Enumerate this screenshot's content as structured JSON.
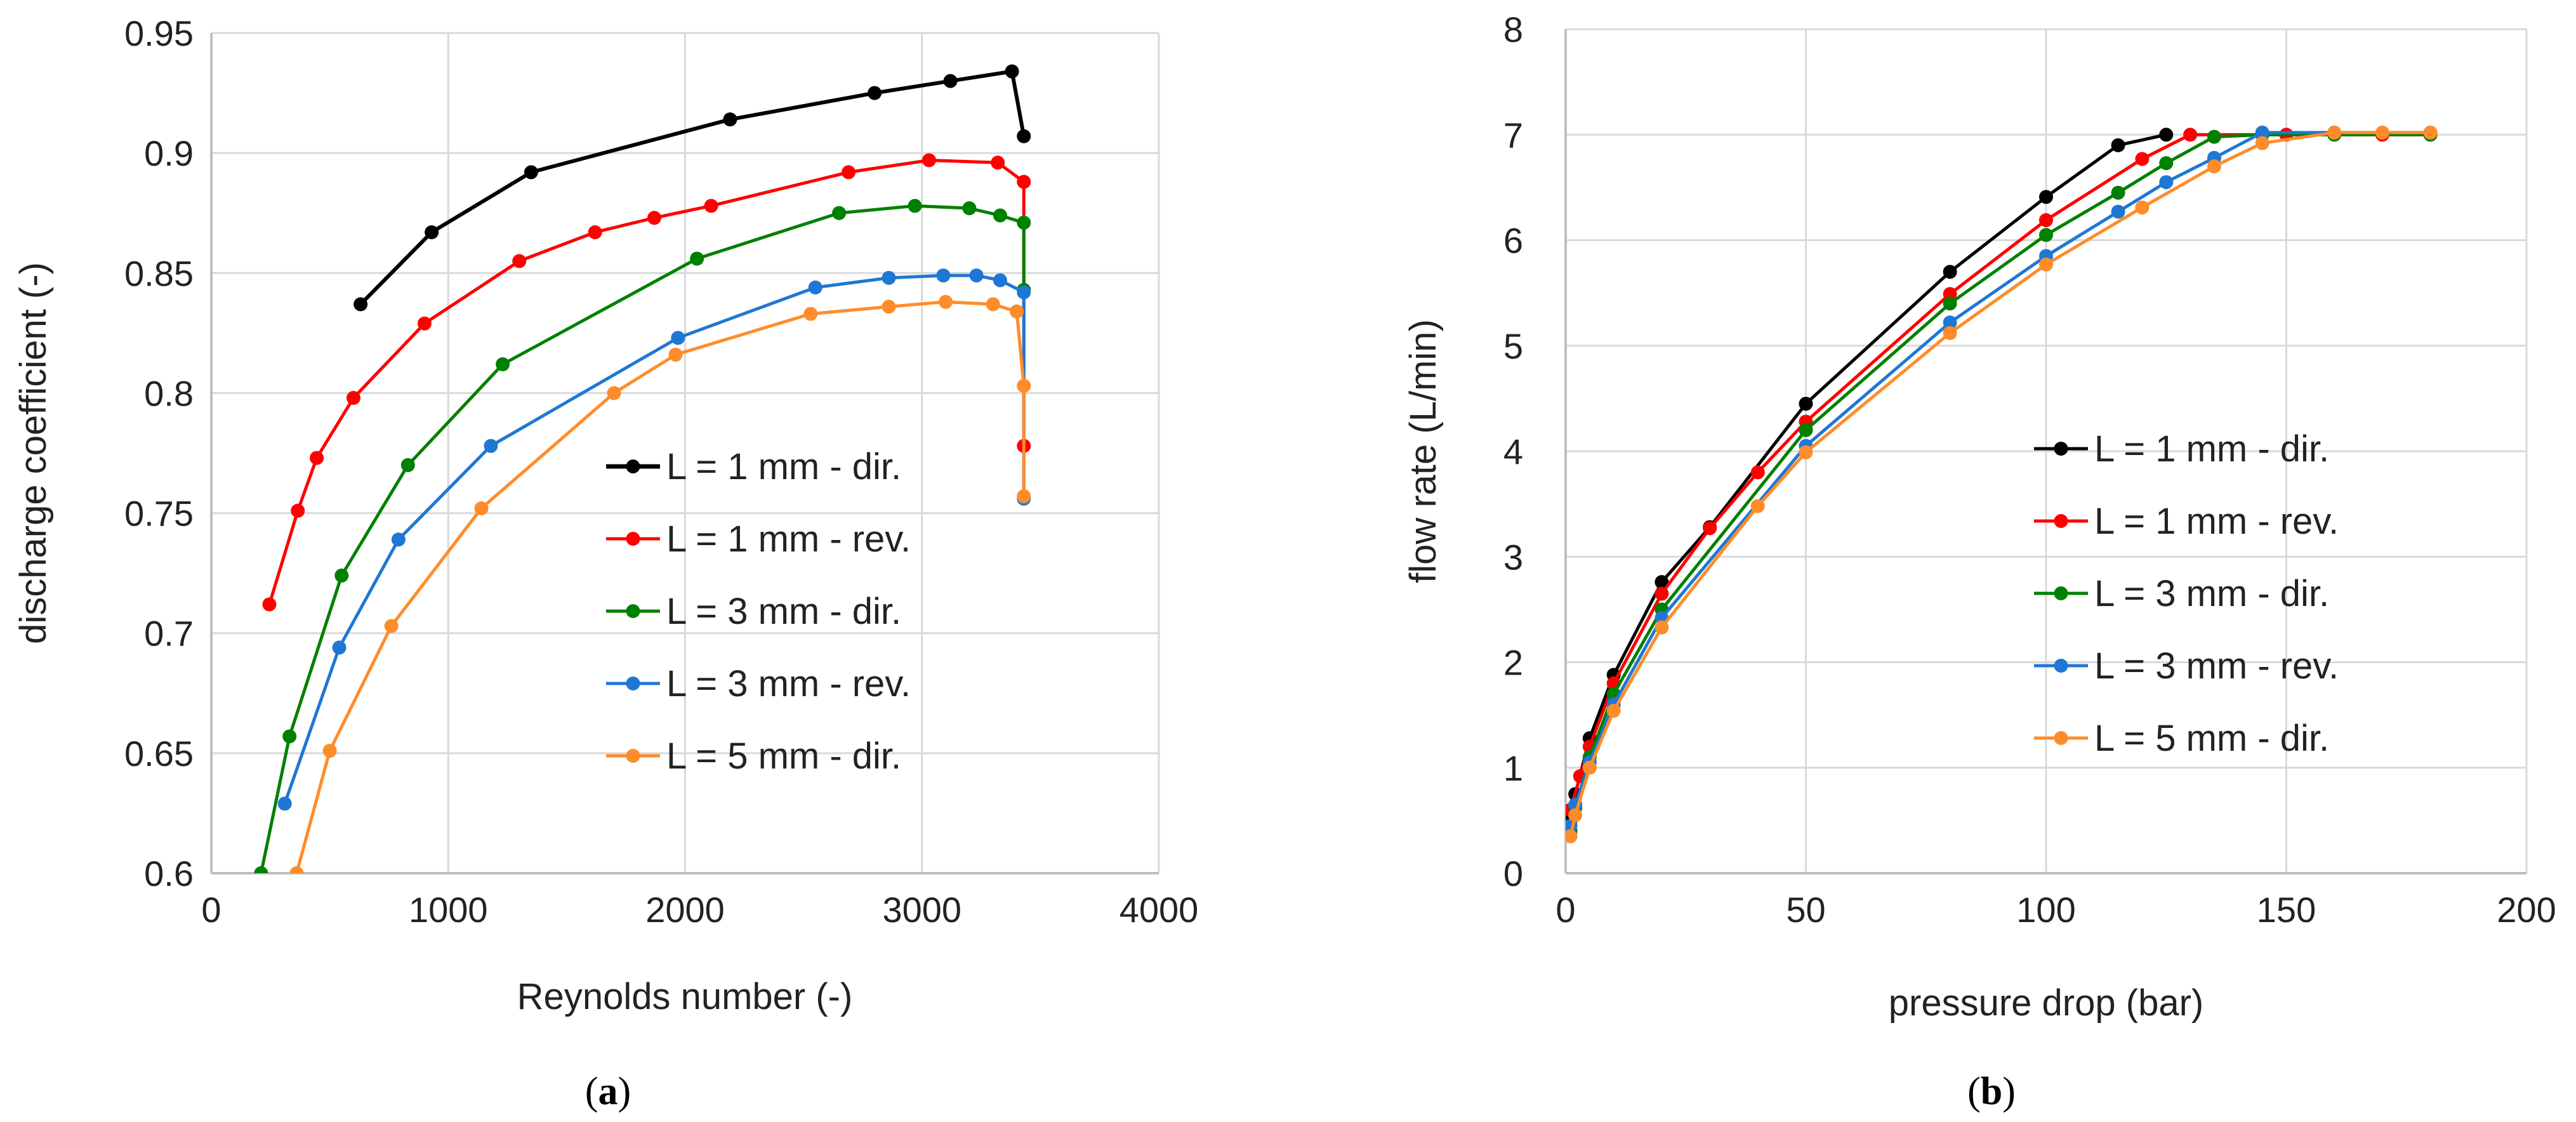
{
  "chart_data": [
    {
      "type": "line",
      "caption_open": "(",
      "caption_letter": "a",
      "caption_close": ")",
      "xlabel": "Reynolds number (-)",
      "ylabel": "discharge coefficient (-)",
      "xlim": [
        0,
        4000
      ],
      "ylim": [
        0.6,
        0.95
      ],
      "xticks": [
        0,
        1000,
        2000,
        3000,
        4000
      ],
      "yticks": [
        0.6,
        0.65,
        0.7,
        0.75,
        0.8,
        0.85,
        0.9,
        0.95
      ],
      "xtick_labels": [
        "0",
        "1000",
        "2000",
        "3000",
        "4000"
      ],
      "ytick_labels": [
        "0.6",
        "0.65",
        "0.7",
        "0.75",
        "0.8",
        "0.85",
        "0.9",
        "0.95"
      ],
      "grid": true,
      "legend": "center-right",
      "series": [
        {
          "name": "L = 1 mm - dir.",
          "color": "#000000",
          "x": [
            630,
            930,
            1350,
            2190,
            2800,
            3120,
            3380,
            3430
          ],
          "y": [
            0.837,
            0.867,
            0.892,
            0.914,
            0.925,
            0.93,
            0.934,
            0.907
          ]
        },
        {
          "name": "L = 1 mm - rev.",
          "color": "#ff0000",
          "x": [
            245,
            365,
            445,
            600,
            900,
            1300,
            1620,
            1870,
            2110,
            2690,
            3030,
            3320,
            3430,
            3430
          ],
          "y": [
            0.712,
            0.751,
            0.773,
            0.798,
            0.829,
            0.855,
            0.867,
            0.873,
            0.878,
            0.892,
            0.897,
            0.896,
            0.888,
            0.778
          ]
        },
        {
          "name": "L = 3 mm - dir.",
          "color": "#008000",
          "x": [
            210,
            330,
            550,
            830,
            1230,
            2050,
            2650,
            2970,
            3200,
            3330,
            3430,
            3430
          ],
          "y": [
            0.6,
            0.657,
            0.724,
            0.77,
            0.812,
            0.856,
            0.875,
            0.878,
            0.877,
            0.874,
            0.871,
            0.843
          ]
        },
        {
          "name": "L = 3 mm - rev.",
          "color": "#1f77d4",
          "x": [
            310,
            540,
            790,
            1180,
            1970,
            2550,
            2860,
            3090,
            3230,
            3330,
            3430,
            3430
          ],
          "y": [
            0.629,
            0.694,
            0.739,
            0.778,
            0.823,
            0.844,
            0.848,
            0.849,
            0.849,
            0.847,
            0.842,
            0.756
          ]
        },
        {
          "name": "L = 5 mm - dir.",
          "color": "#ff8c2a",
          "x": [
            360,
            500,
            760,
            1140,
            1700,
            1960,
            2530,
            2860,
            3100,
            3300,
            3400,
            3430,
            3430
          ],
          "y": [
            0.6,
            0.651,
            0.703,
            0.752,
            0.8,
            0.816,
            0.833,
            0.836,
            0.838,
            0.837,
            0.834,
            0.803,
            0.757
          ]
        }
      ]
    },
    {
      "type": "line",
      "caption_open": "(",
      "caption_letter": "b",
      "caption_close": ")",
      "xlabel": "pressure drop (bar)",
      "ylabel": "flow rate (L/min)",
      "xlim": [
        0,
        200
      ],
      "ylim": [
        0,
        8
      ],
      "xticks": [
        0,
        50,
        100,
        150,
        200
      ],
      "yticks": [
        0,
        1,
        2,
        3,
        4,
        5,
        6,
        7,
        8
      ],
      "xtick_labels": [
        "0",
        "50",
        "100",
        "150",
        "200"
      ],
      "ytick_labels": [
        "0",
        "1",
        "2",
        "3",
        "4",
        "5",
        "6",
        "7",
        "8"
      ],
      "grid": true,
      "legend": "center-right",
      "series": [
        {
          "name": "L = 1 mm - dir.",
          "color": "#000000",
          "x": [
            1,
            2,
            5,
            10,
            20,
            30,
            50,
            80,
            100,
            115,
            125
          ],
          "y": [
            0.5,
            0.75,
            1.28,
            1.88,
            2.76,
            3.28,
            4.45,
            5.7,
            6.41,
            6.9,
            7.0
          ]
        },
        {
          "name": "L = 1 mm - rev.",
          "color": "#ff0000",
          "x": [
            1,
            3,
            5,
            10,
            20,
            30,
            40,
            50,
            80,
            100,
            120,
            130,
            150,
            170,
            180
          ],
          "y": [
            0.6,
            0.92,
            1.2,
            1.8,
            2.65,
            3.27,
            3.8,
            4.28,
            5.49,
            6.19,
            6.77,
            7.0,
            7.0,
            7.0,
            7.0
          ]
        },
        {
          "name": "L = 3 mm - dir.",
          "color": "#008000",
          "x": [
            1,
            2,
            5,
            10,
            20,
            50,
            80,
            100,
            115,
            125,
            135,
            145,
            160,
            180
          ],
          "y": [
            0.4,
            0.62,
            1.1,
            1.7,
            2.5,
            4.2,
            5.4,
            6.05,
            6.45,
            6.73,
            6.98,
            7.0,
            7.0,
            7.0
          ]
        },
        {
          "name": "L = 3 mm - rev.",
          "color": "#1f77d4",
          "x": [
            1,
            2,
            5,
            10,
            20,
            50,
            80,
            100,
            115,
            125,
            135,
            145,
            160,
            180
          ],
          "y": [
            0.45,
            0.65,
            1.05,
            1.6,
            2.42,
            4.05,
            5.22,
            5.85,
            6.27,
            6.55,
            6.78,
            7.02,
            7.02,
            7.02
          ]
        },
        {
          "name": "L = 5 mm - dir.",
          "color": "#ff8c2a",
          "x": [
            1,
            2,
            5,
            10,
            20,
            40,
            50,
            80,
            100,
            120,
            135,
            145,
            160,
            170,
            180
          ],
          "y": [
            0.35,
            0.55,
            1.0,
            1.54,
            2.33,
            3.48,
            3.99,
            5.12,
            5.77,
            6.31,
            6.7,
            6.92,
            7.02,
            7.02,
            7.02
          ]
        }
      ]
    }
  ]
}
